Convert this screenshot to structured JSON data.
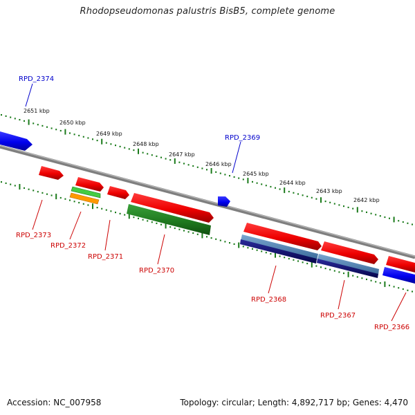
{
  "title": "Rhodopseudomonas palustris BisB5, complete genome",
  "footer": {
    "accession": "Accession: NC_007958",
    "summary": "Topology: circular; Length: 4,892,717 bp; Genes: 4,470"
  },
  "colors": {
    "forward_gene": "#ee0000",
    "reverse_gene": "#0000ee",
    "label_red": "#cc0000",
    "label_blue": "#0000cc",
    "backbone": "#888888",
    "tick": "#1a7a1a",
    "green_feature": "#1f7a1f",
    "navy_feature": "#0a0a6a",
    "steel_feature": "#4a7aaa",
    "orange_feature": "#ff9900",
    "lightgreen_feature": "#44cc44"
  },
  "scale_labels": [
    "2651 kbp",
    "2650 kbp",
    "2649 kbp",
    "2648 kbp",
    "2647 kbp",
    "2646 kbp",
    "2645 kbp",
    "2644 kbp",
    "2643 kbp",
    "2642 kbp"
  ],
  "gene_labels": [
    {
      "text": "RPD_2374",
      "strand": "reverse"
    },
    {
      "text": "RPD_2369",
      "strand": "reverse"
    },
    {
      "text": "RPD_2373",
      "strand": "forward"
    },
    {
      "text": "RPD_2372",
      "strand": "forward"
    },
    {
      "text": "RPD_2371",
      "strand": "forward"
    },
    {
      "text": "RPD_2370",
      "strand": "forward"
    },
    {
      "text": "RPD_2368",
      "strand": "forward"
    },
    {
      "text": "RPD_2367",
      "strand": "forward"
    },
    {
      "text": "RPD_2366",
      "strand": "forward"
    }
  ]
}
